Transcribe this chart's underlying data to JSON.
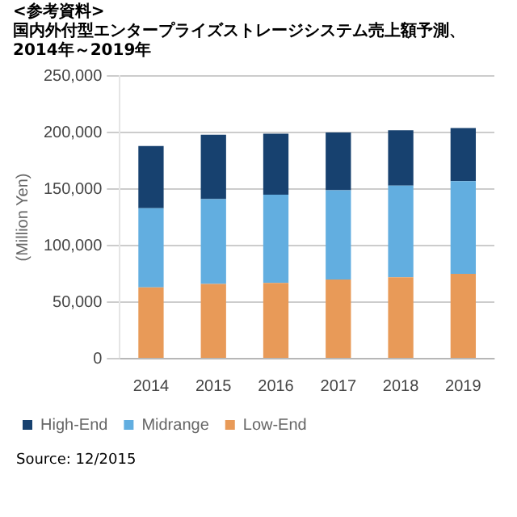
{
  "chart_data": {
    "type": "bar",
    "title": "<参考資料>",
    "subtitle": "国内外付型エンタープライズストレージシステム売上額予測、2014年～2019年",
    "ylabel": "(Million Yen)",
    "categories": [
      "2014",
      "2015",
      "2016",
      "2017",
      "2018",
      "2019"
    ],
    "stacked": true,
    "series": [
      {
        "name": "Low-End",
        "color": "#e89a58",
        "values": [
          63000,
          66000,
          67000,
          70000,
          72000,
          75000
        ]
      },
      {
        "name": "Midrange",
        "color": "#62aee0",
        "values": [
          70000,
          75000,
          78000,
          79000,
          81000,
          82000
        ]
      },
      {
        "name": "High-End",
        "color": "#17416f",
        "values": [
          55000,
          57000,
          54000,
          51000,
          49000,
          47000
        ]
      }
    ],
    "ylim": [
      0,
      250000
    ],
    "yticks": [
      {
        "value": 0,
        "label": "0"
      },
      {
        "value": 50000,
        "label": "50,000"
      },
      {
        "value": 100000,
        "label": "100,000"
      },
      {
        "value": 150000,
        "label": "150,000"
      },
      {
        "value": 200000,
        "label": "200,000"
      },
      {
        "value": 250000,
        "label": "250,000"
      }
    ],
    "grid": "y",
    "legend": "bottom",
    "annotations": [
      "Source: 12/2015"
    ]
  }
}
